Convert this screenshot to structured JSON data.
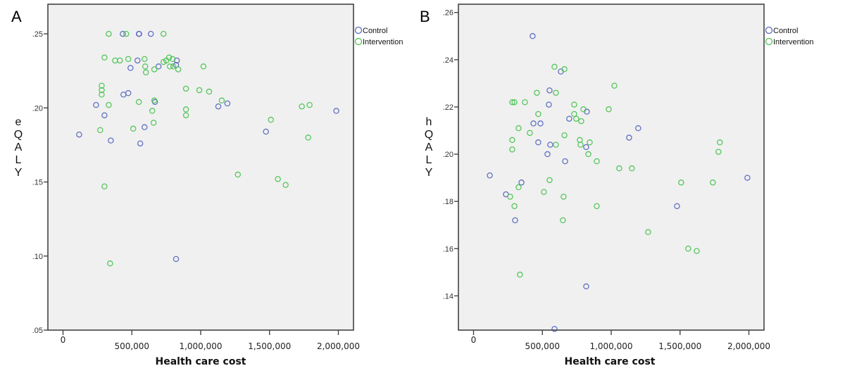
{
  "colors": {
    "control": "#5a6ac0",
    "intervention": "#4ec454",
    "plot_bg": "#f0f0f0",
    "axis": "#444444"
  },
  "chart_data": [
    {
      "type": "scatter",
      "panel": "A",
      "title": "",
      "xlabel": "Health care cost",
      "ylabel": "eQALY",
      "xlim": [
        -110000,
        2110000
      ],
      "ylim": [
        0.05,
        0.27
      ],
      "xticks": [
        0,
        500000,
        1000000,
        1500000,
        2000000
      ],
      "xtick_labels": [
        "0",
        "500,000",
        "1,000,000",
        "1,500,000",
        "2,000,000"
      ],
      "yticks": [
        0.05,
        0.1,
        0.15,
        0.2,
        0.25
      ],
      "ytick_labels": [
        ".05",
        ".10",
        ".15",
        ".20",
        ".25"
      ],
      "grid": false,
      "legend_position": "top-right-outside",
      "series": [
        {
          "name": "Control",
          "points": [
            [
              434000,
              0.25
            ],
            [
              551000,
              0.25
            ],
            [
              553000,
              0.25
            ],
            [
              638000,
              0.25
            ],
            [
              541000,
              0.232
            ],
            [
              490000,
              0.227
            ],
            [
              694000,
              0.228
            ],
            [
              827000,
              0.232
            ],
            [
              821000,
              0.229
            ],
            [
              439000,
              0.209
            ],
            [
              474000,
              0.21
            ],
            [
              240000,
              0.202
            ],
            [
              301000,
              0.195
            ],
            [
              668000,
              0.204
            ],
            [
              117000,
              0.182
            ],
            [
              347000,
              0.178
            ],
            [
              592000,
              0.187
            ],
            [
              561000,
              0.176
            ],
            [
              1128000,
              0.201
            ],
            [
              1194000,
              0.203
            ],
            [
              1474000,
              0.184
            ],
            [
              1985000,
              0.198
            ],
            [
              821000,
              0.098
            ]
          ]
        },
        {
          "name": "Intervention",
          "points": [
            [
              332000,
              0.25
            ],
            [
              459000,
              0.25
            ],
            [
              730000,
              0.25
            ],
            [
              301000,
              0.234
            ],
            [
              378000,
              0.232
            ],
            [
              413000,
              0.232
            ],
            [
              474000,
              0.233
            ],
            [
              592000,
              0.233
            ],
            [
              597000,
              0.228
            ],
            [
              602000,
              0.224
            ],
            [
              663000,
              0.226
            ],
            [
              730000,
              0.231
            ],
            [
              750000,
              0.232
            ],
            [
              770000,
              0.234
            ],
            [
              796000,
              0.233
            ],
            [
              776000,
              0.228
            ],
            [
              801000,
              0.228
            ],
            [
              837000,
              0.226
            ],
            [
              1020000,
              0.228
            ],
            [
              281000,
              0.215
            ],
            [
              281000,
              0.212
            ],
            [
              281000,
              0.209
            ],
            [
              332000,
              0.202
            ],
            [
              551000,
              0.204
            ],
            [
              663000,
              0.205
            ],
            [
              648000,
              0.198
            ],
            [
              893000,
              0.213
            ],
            [
              990000,
              0.212
            ],
            [
              1061000,
              0.211
            ],
            [
              1153000,
              0.205
            ],
            [
              893000,
              0.199
            ],
            [
              893000,
              0.195
            ],
            [
              658000,
              0.19
            ],
            [
              510000,
              0.186
            ],
            [
              270000,
              0.185
            ],
            [
              1510000,
              0.192
            ],
            [
              1735000,
              0.201
            ],
            [
              1791000,
              0.202
            ],
            [
              1781000,
              0.18
            ],
            [
              301000,
              0.147
            ],
            [
              1270000,
              0.155
            ],
            [
              1561000,
              0.152
            ],
            [
              1617000,
              0.148
            ],
            [
              342000,
              0.095
            ]
          ]
        }
      ]
    },
    {
      "type": "scatter",
      "panel": "B",
      "title": "",
      "xlabel": "Health care cost",
      "ylabel": "hQALY",
      "xlim": [
        -110000,
        2110000
      ],
      "ylim": [
        0.1255,
        0.2635
      ],
      "xticks": [
        0,
        500000,
        1000000,
        1500000,
        2000000
      ],
      "xtick_labels": [
        "0",
        "500,000",
        "1,000,000",
        "1,500,000",
        "2,000,000"
      ],
      "yticks": [
        0.14,
        0.16,
        0.18,
        0.2,
        0.22,
        0.24,
        0.26
      ],
      "ytick_labels": [
        ".14",
        ".16",
        ".18",
        ".20",
        ".22",
        ".24",
        ".26"
      ],
      "grid": false,
      "legend_position": "top-right-outside",
      "series": [
        {
          "name": "Control",
          "points": [
            [
              429000,
              0.25
            ],
            [
              634000,
              0.235
            ],
            [
              552000,
              0.227
            ],
            [
              547000,
              0.221
            ],
            [
              823000,
              0.218
            ],
            [
              695000,
              0.215
            ],
            [
              435000,
              0.213
            ],
            [
              486000,
              0.213
            ],
            [
              470000,
              0.205
            ],
            [
              557000,
              0.204
            ],
            [
              818000,
              0.203
            ],
            [
              537000,
              0.2
            ],
            [
              665000,
              0.197
            ],
            [
              1196000,
              0.211
            ],
            [
              1130000,
              0.207
            ],
            [
              1989000,
              0.19
            ],
            [
              118000,
              0.191
            ],
            [
              348000,
              0.188
            ],
            [
              235000,
              0.183
            ],
            [
              302000,
              0.172
            ],
            [
              1478000,
              0.178
            ],
            [
              818000,
              0.144
            ],
            [
              588000,
              0.126
            ]
          ]
        },
        {
          "name": "Intervention",
          "points": [
            [
              588000,
              0.237
            ],
            [
              660000,
              0.236
            ],
            [
              460000,
              0.226
            ],
            [
              598000,
              0.226
            ],
            [
              281000,
              0.222
            ],
            [
              297000,
              0.222
            ],
            [
              373000,
              0.222
            ],
            [
              731000,
              0.221
            ],
            [
              798000,
              0.219
            ],
            [
              982000,
              0.219
            ],
            [
              1023000,
              0.229
            ],
            [
              470000,
              0.217
            ],
            [
              731000,
              0.217
            ],
            [
              746000,
              0.215
            ],
            [
              782000,
              0.214
            ],
            [
              327000,
              0.211
            ],
            [
              409000,
              0.209
            ],
            [
              281000,
              0.206
            ],
            [
              281000,
              0.202
            ],
            [
              598000,
              0.204
            ],
            [
              660000,
              0.208
            ],
            [
              772000,
              0.206
            ],
            [
              777000,
              0.204
            ],
            [
              844000,
              0.205
            ],
            [
              834000,
              0.2
            ],
            [
              895000,
              0.197
            ],
            [
              1058000,
              0.194
            ],
            [
              1150000,
              0.194
            ],
            [
              1789000,
              0.205
            ],
            [
              1779000,
              0.201
            ],
            [
              1738000,
              0.188
            ],
            [
              1508000,
              0.188
            ],
            [
              327000,
              0.186
            ],
            [
              552000,
              0.189
            ],
            [
              266000,
              0.182
            ],
            [
              511000,
              0.184
            ],
            [
              654000,
              0.182
            ],
            [
              297000,
              0.178
            ],
            [
              895000,
              0.178
            ],
            [
              649000,
              0.172
            ],
            [
              1268000,
              0.167
            ],
            [
              1559000,
              0.16
            ],
            [
              1621000,
              0.159
            ],
            [
              337000,
              0.149
            ]
          ]
        }
      ]
    }
  ]
}
